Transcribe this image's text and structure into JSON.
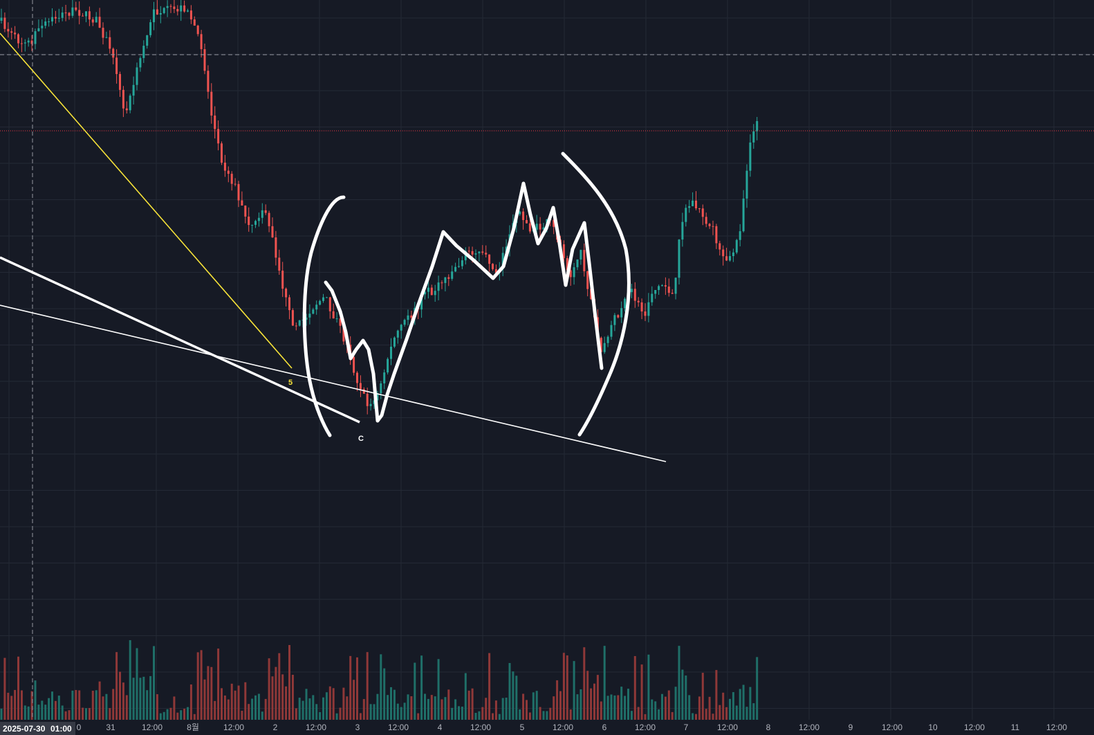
{
  "colors": {
    "background": "#161a25",
    "grid": "#242935",
    "up": "#26a69a",
    "down": "#ef5350",
    "volume_up": "#1f6f68",
    "volume_down": "#8f3838",
    "price_line": "#f23645",
    "crosshair": "#9598a1",
    "axis_text": "#b2b5be",
    "badge": "#363a45",
    "yellow_trendline": "#f7e339",
    "white_drawing": "#ffffff"
  },
  "chart_data": {
    "type": "candlestick",
    "timeframe_hours": 1,
    "x_range": [
      "2025-07-30 00:00",
      "2025-08-11 23:00"
    ],
    "grid": true,
    "x_tick_labels": [
      "0",
      "31",
      "12:00",
      "8월",
      "12:00",
      "2",
      "12:00",
      "3",
      "12:00",
      "4",
      "12:00",
      "5",
      "12:00",
      "6",
      "12:00",
      "7",
      "12:00",
      "8",
      "12:00",
      "9",
      "12:00",
      "10",
      "12:00",
      "11",
      "12:00"
    ],
    "crosshair_label": [
      "2025-07-30",
      "01:00"
    ],
    "wave_labels": [
      {
        "text": "5",
        "color": "#f7e339"
      },
      {
        "text": "C",
        "color": "#ffffff"
      }
    ],
    "volume_series": true
  }
}
